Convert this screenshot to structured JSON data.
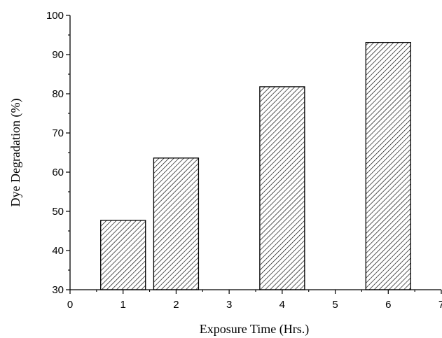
{
  "chart_data": {
    "type": "bar",
    "title": "",
    "xlabel": "Exposure Time (Hrs.)",
    "ylabel": "Dye Degradation (%)",
    "x": [
      1,
      2,
      4,
      6
    ],
    "values": [
      47.7,
      63.6,
      81.8,
      93.1
    ],
    "xlim": [
      0,
      7
    ],
    "ylim": [
      30,
      100
    ],
    "xticks": [
      0,
      1,
      2,
      3,
      4,
      5,
      6,
      7
    ],
    "yticks": [
      30,
      40,
      50,
      60,
      70,
      80,
      90,
      100
    ],
    "bar_fill": "diagonal-hatch",
    "bar_color": "#000000",
    "grid": false,
    "legend": "none"
  }
}
